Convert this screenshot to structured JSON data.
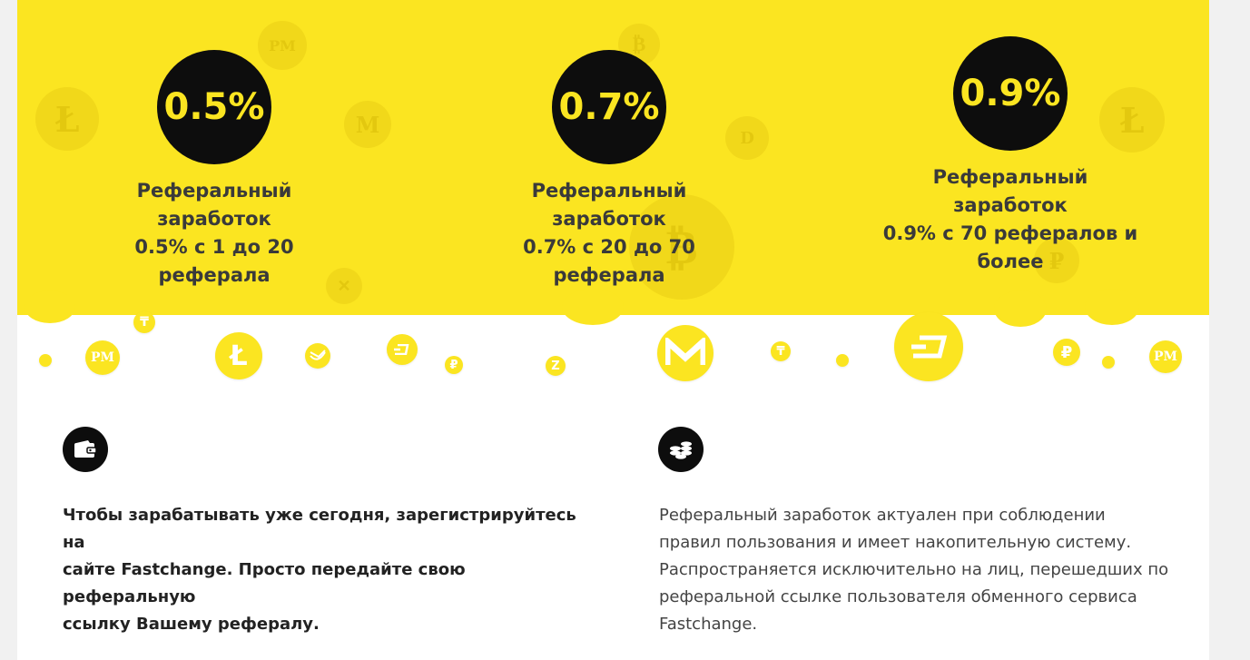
{
  "tiers": [
    {
      "badge": "0.5%",
      "line1": "Реферальный заработок",
      "line2": "0.5% с 1 до 20 реферала",
      "line3": ""
    },
    {
      "badge": "0.7%",
      "line1": "Реферальный заработок",
      "line2": "0.7% с 20 до 70 реферала",
      "line3": ""
    },
    {
      "badge": "0.9%",
      "line1": "Реферальный заработок",
      "line2": "0.9% с 70 рефералов и",
      "line3": "более"
    }
  ],
  "info": {
    "left": {
      "icon": "wallet-icon",
      "lines": [
        "Чтобы зарабатывать уже сегодня, зарегистрируйтесь на",
        "сайте Fastchange. Просто передайте свою реферальную",
        "ссылку Вашему рефералу."
      ]
    },
    "right": {
      "icon": "coins-stack-icon",
      "lines": [
        "Реферальный заработок актуален при соблюдении",
        "правил пользования и имеет накопительную систему.",
        "Распространяется исключительно на лиц, перешедших по",
        "реферальной ссылке пользователя обменного сервиса",
        "Fastchange."
      ]
    }
  },
  "coins": {
    "pm": "PM",
    "ruble": "₽",
    "tenge": "₸",
    "litecoin": "Ł",
    "bitcoin": "₿"
  },
  "colors": {
    "accent_yellow": "#fbe521",
    "badge_black": "#0d0d0d"
  }
}
